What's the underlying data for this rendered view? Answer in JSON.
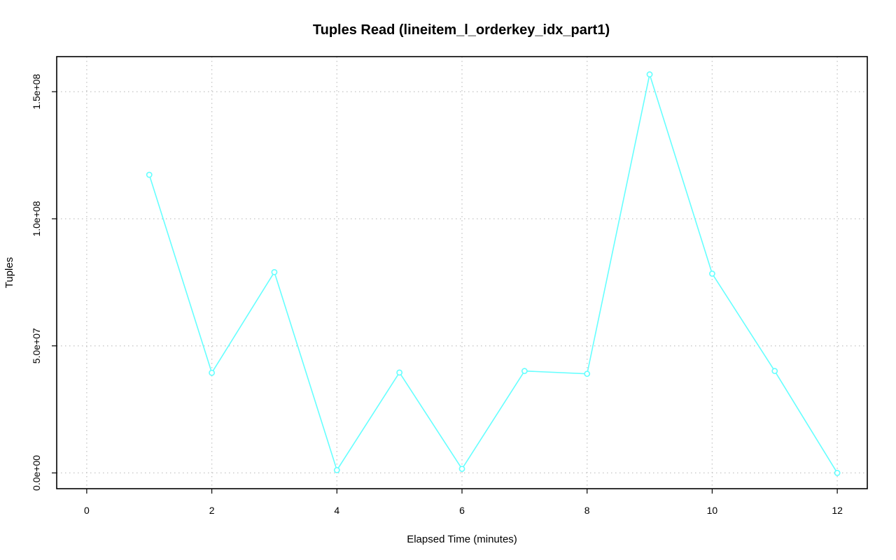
{
  "chart_data": {
    "type": "line",
    "title": "Tuples Read (lineitem_l_orderkey_idx_part1)",
    "xlabel": "Elapsed Time (minutes)",
    "ylabel": "Tuples",
    "xlim": [
      -0.48,
      12.48
    ],
    "ylim": [
      -6200000,
      163800000
    ],
    "x_ticks": [
      0,
      2,
      4,
      6,
      8,
      10,
      12
    ],
    "x_tick_labels": [
      "0",
      "2",
      "4",
      "6",
      "8",
      "10",
      "12"
    ],
    "y_ticks": [
      0,
      50000000,
      100000000,
      150000000
    ],
    "y_tick_labels": [
      "0.0e+00",
      "5.0e+07",
      "1.0e+08",
      "1.5e+08"
    ],
    "grid": true,
    "legend": "none",
    "colors": {
      "series": "#66ffff",
      "grid": "#c8c8c8",
      "frame": "#000000"
    },
    "series": [
      {
        "x": [
          1,
          2,
          3,
          4,
          5,
          6,
          7,
          8,
          9,
          10,
          11,
          12
        ],
        "values": [
          117300000,
          39400000,
          79000000,
          1100000,
          39500000,
          1600000,
          40100000,
          39000000,
          156800000,
          78400000,
          40100000,
          0
        ]
      }
    ]
  }
}
